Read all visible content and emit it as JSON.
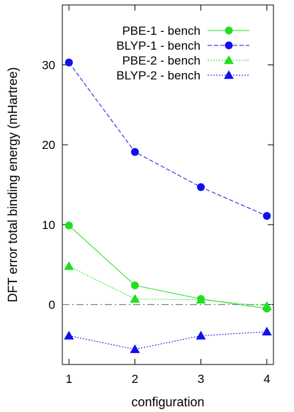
{
  "chart_data": {
    "type": "line",
    "xlabel": "configuration",
    "ylabel": "DFT error total binding energy (mHartree)",
    "xlim": [
      0.9,
      4.1
    ],
    "ylim": [
      -7.5,
      37.5
    ],
    "xticks": [
      1,
      2,
      3,
      4
    ],
    "yticks": [
      0,
      10,
      20,
      30
    ],
    "grid": false,
    "reference_line": {
      "y": 0,
      "style": "dash-dot",
      "color": "#808080"
    },
    "legend": {
      "position": "top-right"
    },
    "series": [
      {
        "name": "PBE-1 - bench",
        "color": "#22dd22",
        "marker": "circle",
        "dash": "solid",
        "x": [
          1,
          2,
          3,
          4
        ],
        "y": [
          9.9,
          2.4,
          0.7,
          -0.5
        ]
      },
      {
        "name": "BLYP-1 - bench",
        "color": "#1010ee",
        "marker": "circle",
        "dash": "dashed",
        "x": [
          1,
          2,
          3,
          4
        ],
        "y": [
          30.3,
          19.1,
          14.7,
          11.1
        ]
      },
      {
        "name": "PBE-2 - bench",
        "color": "#22dd22",
        "marker": "triangle",
        "dash": "dotted",
        "x": [
          1,
          2,
          3,
          4
        ],
        "y": [
          4.8,
          0.7,
          0.6,
          -0.2
        ]
      },
      {
        "name": "BLYP-2 - bench",
        "color": "#1010ee",
        "marker": "triangle",
        "dash": "dotted",
        "x": [
          1,
          2,
          3,
          4
        ],
        "y": [
          -3.9,
          -5.6,
          -3.9,
          -3.4
        ]
      }
    ]
  }
}
